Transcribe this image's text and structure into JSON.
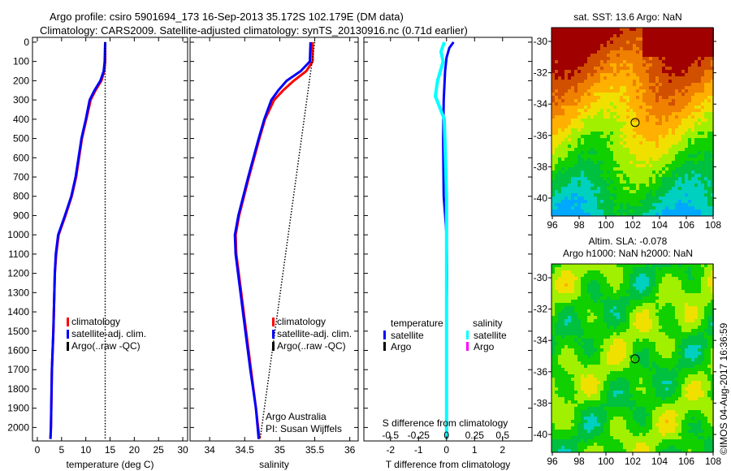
{
  "title": {
    "line1": "Argo profile: csiro 5901694_173 16-Sep-2013 35.172S 102.179E (DM data)",
    "line2": "Climatology: CARS2009. Satellite-adjusted climatology: synTS_20130916.nc (0.71d earlier)"
  },
  "credit": "©IMOS 04-Aug-2017 16:36:59",
  "colors": {
    "climatology": "#ff0000",
    "satellite": "#0000ff",
    "argo": "#000000",
    "sal_satellite": "#00ffff",
    "sal_argo": "#ff00ff"
  },
  "chart_data": [
    {
      "type": "line",
      "name": "temperature",
      "xlabel": "temperature (deg C)",
      "xlim": [
        -1,
        31
      ],
      "ylim": [
        2070,
        -25
      ],
      "xticks": [
        0,
        5,
        10,
        15,
        20,
        25,
        30
      ],
      "yticks": [
        0,
        100,
        200,
        300,
        400,
        500,
        600,
        700,
        800,
        900,
        1000,
        1100,
        1200,
        1300,
        1400,
        1500,
        1600,
        1700,
        1800,
        1900,
        2000
      ],
      "legend": [
        "climatology",
        "satellite-adj. clim.",
        "Argo(..raw -QC)"
      ],
      "series": [
        {
          "name": "climatology",
          "color": "#ff0000",
          "depth": [
            0,
            100,
            150,
            200,
            250,
            300,
            400,
            500,
            600,
            700,
            800,
            900,
            1000,
            1100,
            1200,
            1300,
            1500,
            1700,
            2000,
            2060
          ],
          "values": [
            14.0,
            14.0,
            13.8,
            13.2,
            12.0,
            11.0,
            10.1,
            9.2,
            8.6,
            8.0,
            7.1,
            5.8,
            4.4,
            3.9,
            3.6,
            3.5,
            3.3,
            3.0,
            2.8,
            2.7
          ]
        },
        {
          "name": "satellite-adj. clim.",
          "color": "#0000ff",
          "depth": [
            0,
            100,
            150,
            200,
            250,
            300,
            400,
            500,
            600,
            700,
            800,
            900,
            1000,
            1100,
            1200,
            1300,
            1500,
            1700,
            2000,
            2060
          ],
          "values": [
            14.0,
            13.9,
            13.7,
            13.0,
            11.8,
            10.8,
            10.0,
            9.1,
            8.5,
            7.9,
            7.0,
            5.7,
            4.3,
            3.8,
            3.6,
            3.5,
            3.3,
            3.0,
            2.8,
            2.7
          ]
        },
        {
          "name": "Argo(..raw -QC)",
          "color": "#000000",
          "dotted": true,
          "depth": [
            0,
            2060
          ],
          "values": [
            14.0,
            14.0
          ]
        }
      ]
    },
    {
      "type": "line",
      "name": "salinity",
      "xlabel": "salinity",
      "xlim": [
        33.72,
        36.12
      ],
      "ylim": [
        2070,
        -25
      ],
      "xticks": [
        34,
        34.5,
        35,
        35.5,
        36
      ],
      "yticks": [],
      "legend": [
        "climatology",
        "satellite-adj. clim.",
        "Argo(..raw -QC)"
      ],
      "annotation": [
        "Argo Australia",
        "PI: Susan Wijffels"
      ],
      "series": [
        {
          "name": "climatology",
          "color": "#ff0000",
          "depth": [
            0,
            100,
            150,
            200,
            250,
            300,
            400,
            500,
            700,
            900,
            1000,
            1100,
            1300,
            1500,
            1700,
            1900,
            2060
          ],
          "values": [
            35.47,
            35.47,
            35.38,
            35.2,
            35.05,
            34.92,
            34.79,
            34.71,
            34.56,
            34.42,
            34.37,
            34.38,
            34.45,
            34.52,
            34.59,
            34.66,
            34.71
          ]
        },
        {
          "name": "satellite-adj. clim.",
          "color": "#0000ff",
          "depth": [
            0,
            100,
            150,
            200,
            250,
            300,
            400,
            500,
            700,
            900,
            1000,
            1100,
            1300,
            1500,
            1700,
            1900,
            2060
          ],
          "values": [
            35.44,
            35.43,
            35.3,
            35.1,
            34.98,
            34.88,
            34.78,
            34.7,
            34.55,
            34.41,
            34.36,
            34.37,
            34.44,
            34.51,
            34.58,
            34.66,
            34.7
          ]
        },
        {
          "name": "Argo(..raw -QC)",
          "color": "#000000",
          "dotted": true,
          "depth": [
            0,
            2060
          ],
          "values": [
            35.5,
            34.72
          ]
        }
      ]
    },
    {
      "type": "line",
      "name": "difference",
      "xlabel": "T difference from climatology",
      "xlim": [
        -2.95,
        3.05
      ],
      "ylim": [
        2070,
        -25
      ],
      "xticks": [
        -2,
        -1,
        0,
        1,
        2
      ],
      "x2label": "S difference from climatology",
      "x2ticks": [
        -0.5,
        -0.25,
        0,
        0.25,
        0.5
      ],
      "x2ticks_labels": [
        "-0.5",
        "-0.25",
        "0",
        "0.25",
        "0.5"
      ],
      "legend": {
        "temperature": "temperature",
        "salinity": "salinity",
        "items": [
          "satellite",
          "Argo"
        ]
      },
      "series": [
        {
          "name": "T satellite",
          "color": "#0000ff",
          "depth": [
            0,
            30,
            80,
            150,
            300,
            500,
            800,
            1000,
            1200,
            1400
          ],
          "values": [
            0.25,
            0.1,
            0.0,
            -0.05,
            -0.1,
            -0.12,
            -0.1,
            0.0,
            0.02,
            0.0
          ]
        },
        {
          "name": "S satellite",
          "color": "#00ffff",
          "scale": "S",
          "depth": [
            0,
            50,
            100,
            200,
            280,
            400,
            600,
            800,
            2060
          ],
          "values": [
            -0.02,
            -0.05,
            -0.03,
            -0.08,
            -0.1,
            -0.02,
            -0.01,
            0,
            0
          ]
        }
      ]
    },
    {
      "type": "heatmap",
      "name": "sst-map",
      "title": "sat. SST: 13.6 Argo: NaN",
      "xticks": [
        96,
        98,
        100,
        102,
        104,
        106,
        108
      ],
      "yticks": [
        -30,
        -32,
        -34,
        -36,
        -38,
        -40
      ],
      "marker": [
        102.179,
        -35.172
      ]
    },
    {
      "type": "heatmap",
      "name": "sla-map",
      "title1": "Altim. SLA: -0.078",
      "title2": "Argo h1000: NaN h2000: NaN",
      "xticks": [
        96,
        98,
        100,
        102,
        104,
        106,
        108
      ],
      "yticks": [
        -30,
        -32,
        -34,
        -36,
        -38,
        -40
      ],
      "marker": [
        102.179,
        -35.172
      ]
    }
  ]
}
